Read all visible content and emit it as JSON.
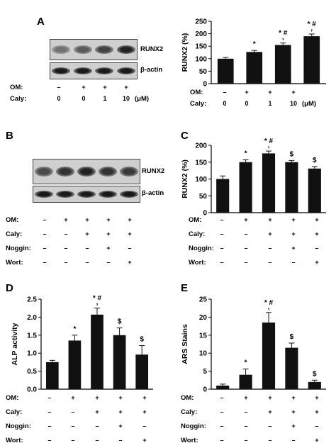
{
  "panels": {
    "A": {
      "label": "A"
    },
    "B": {
      "label": "B"
    },
    "C": {
      "label": "C"
    },
    "D": {
      "label": "D"
    },
    "E": {
      "label": "E"
    }
  },
  "blots": {
    "A": {
      "protein": "RUNX2",
      "loading": "β-actin",
      "runx2_intensity": [
        0.35,
        0.5,
        0.65,
        0.85
      ],
      "actin_intensity": [
        0.9,
        0.9,
        0.9,
        0.9
      ]
    },
    "B": {
      "protein": "RUNX2",
      "loading": "β-actin",
      "runx2_intensity": [
        0.6,
        0.75,
        0.85,
        0.75,
        0.7
      ],
      "actin_intensity": [
        0.9,
        0.9,
        0.9,
        0.9,
        0.9
      ]
    }
  },
  "conditions": {
    "A": {
      "rows": [
        {
          "label": "OM:",
          "cells": [
            "–",
            "+",
            "+",
            "+"
          ]
        },
        {
          "label": "Caly:",
          "cells": [
            "0",
            "0",
            "1",
            "10"
          ],
          "unit": "(μM)"
        }
      ]
    },
    "B": {
      "rows": [
        {
          "label": "OM:",
          "cells": [
            "–",
            "+",
            "+",
            "+",
            "+"
          ]
        },
        {
          "label": "Caly:",
          "cells": [
            "–",
            "–",
            "+",
            "+",
            "+"
          ]
        },
        {
          "label": "Noggin:",
          "cells": [
            "–",
            "–",
            "–",
            "+",
            "–"
          ]
        },
        {
          "label": "Wort:",
          "cells": [
            "–",
            "–",
            "–",
            "–",
            "+"
          ]
        }
      ]
    },
    "A_chart": {
      "rows": [
        {
          "label": "OM:",
          "cells": [
            "–",
            "+",
            "+",
            "+"
          ]
        },
        {
          "label": "Caly:",
          "cells": [
            "0",
            "0",
            "1",
            "10"
          ],
          "unit": "(μM)"
        }
      ]
    },
    "C": {
      "rows": [
        {
          "label": "OM:",
          "cells": [
            "–",
            "+",
            "+",
            "+",
            "+"
          ]
        },
        {
          "label": "Caly:",
          "cells": [
            "–",
            "–",
            "+",
            "+",
            "+"
          ]
        },
        {
          "label": "Noggin:",
          "cells": [
            "–",
            "–",
            "–",
            "+",
            "–"
          ]
        },
        {
          "label": "Wort:",
          "cells": [
            "–",
            "–",
            "–",
            "–",
            "+"
          ]
        }
      ]
    },
    "D": {
      "rows": [
        {
          "label": "OM:",
          "cells": [
            "–",
            "+",
            "+",
            "+",
            "+"
          ]
        },
        {
          "label": "Caly:",
          "cells": [
            "–",
            "–",
            "+",
            "+",
            "+"
          ]
        },
        {
          "label": "Noggin:",
          "cells": [
            "–",
            "–",
            "–",
            "+",
            "–"
          ]
        },
        {
          "label": "Wort:",
          "cells": [
            "–",
            "–",
            "–",
            "–",
            "+"
          ]
        }
      ]
    },
    "E": {
      "rows": [
        {
          "label": "OM:",
          "cells": [
            "–",
            "+",
            "+",
            "+",
            "+"
          ]
        },
        {
          "label": "Caly:",
          "cells": [
            "–",
            "–",
            "+",
            "+",
            "+"
          ]
        },
        {
          "label": "Noggin:",
          "cells": [
            "–",
            "–",
            "–",
            "+",
            "–"
          ]
        },
        {
          "label": "Wort:",
          "cells": [
            "–",
            "–",
            "–",
            "–",
            "+"
          ]
        }
      ]
    }
  },
  "chart_data": [
    {
      "id": "A",
      "type": "bar",
      "ylabel": "RUNX2 (%)",
      "ylim": [
        0,
        250
      ],
      "yticks": [
        "0",
        "50",
        "100",
        "150",
        "200",
        "250"
      ],
      "values": [
        100,
        127,
        155,
        190
      ],
      "errors": [
        5,
        6,
        8,
        9
      ],
      "annotations": [
        "",
        "*",
        "* #\n,",
        "* #\n,"
      ]
    },
    {
      "id": "C",
      "type": "bar",
      "ylabel": "RUNX2 (%)",
      "ylim": [
        0,
        200
      ],
      "yticks": [
        "0",
        "50",
        "100",
        "150",
        "200"
      ],
      "values": [
        100,
        150,
        176,
        150,
        131
      ],
      "errors": [
        9,
        7,
        7,
        5,
        6
      ],
      "annotations": [
        "",
        "*",
        "* #\n,",
        "$",
        "$"
      ]
    },
    {
      "id": "D",
      "type": "bar",
      "ylabel": "ALP activity",
      "ylim": [
        0,
        2.5
      ],
      "yticks": [
        "0.0",
        "0.5",
        "1.0",
        "1.5",
        "2.0",
        "2.5"
      ],
      "values": [
        0.75,
        1.35,
        2.07,
        1.5,
        0.96
      ],
      "errors": [
        0.05,
        0.15,
        0.18,
        0.2,
        0.25
      ],
      "annotations": [
        "",
        "*",
        "* #\n,",
        "$",
        "$"
      ]
    },
    {
      "id": "E",
      "type": "bar",
      "ylabel": "ARS Stains",
      "ylim": [
        0,
        25
      ],
      "yticks": [
        "0",
        "5",
        "10",
        "15",
        "20",
        "25"
      ],
      "values": [
        1.0,
        4.0,
        18.5,
        11.5,
        2.0
      ],
      "errors": [
        0.4,
        1.6,
        2.8,
        1.3,
        0.5
      ],
      "annotations": [
        "",
        "*",
        "* #\n,",
        "$",
        "$"
      ]
    }
  ]
}
